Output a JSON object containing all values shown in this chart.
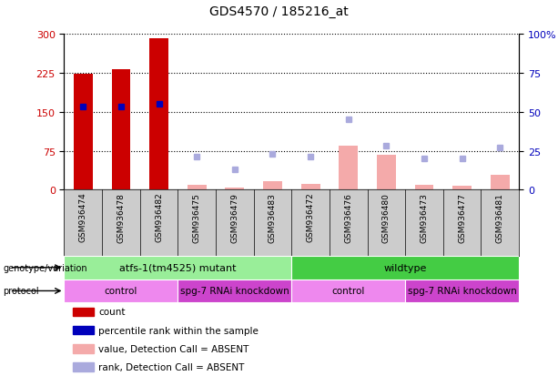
{
  "title": "GDS4570 / 185216_at",
  "samples": [
    "GSM936474",
    "GSM936478",
    "GSM936482",
    "GSM936475",
    "GSM936479",
    "GSM936483",
    "GSM936472",
    "GSM936476",
    "GSM936480",
    "GSM936473",
    "GSM936477",
    "GSM936481"
  ],
  "count_values": [
    222,
    231,
    291,
    null,
    null,
    null,
    null,
    null,
    null,
    null,
    null,
    null
  ],
  "percentile_values": [
    53,
    53,
    55,
    null,
    null,
    null,
    null,
    null,
    null,
    null,
    null,
    null
  ],
  "absent_count_values": [
    null,
    null,
    null,
    10,
    5,
    17,
    12,
    85,
    68,
    10,
    8,
    28
  ],
  "absent_rank_values": [
    null,
    null,
    null,
    21,
    13,
    23,
    21,
    45,
    28,
    20,
    20,
    27
  ],
  "ylim_left": [
    0,
    300
  ],
  "ylim_right": [
    0,
    100
  ],
  "yticks_left": [
    0,
    75,
    150,
    225,
    300
  ],
  "yticks_right": [
    0,
    25,
    50,
    75,
    100
  ],
  "genotype_groups": [
    {
      "label": "atfs-1(tm4525) mutant",
      "start": 0,
      "end": 6,
      "color": "#99EE99"
    },
    {
      "label": "wildtype",
      "start": 6,
      "end": 12,
      "color": "#44CC44"
    }
  ],
  "protocol_groups": [
    {
      "label": "control",
      "start": 0,
      "end": 3,
      "color": "#EE88EE"
    },
    {
      "label": "spg-7 RNAi knockdown",
      "start": 3,
      "end": 6,
      "color": "#CC44CC"
    },
    {
      "label": "control",
      "start": 6,
      "end": 9,
      "color": "#EE88EE"
    },
    {
      "label": "spg-7 RNAi knockdown",
      "start": 9,
      "end": 12,
      "color": "#CC44CC"
    }
  ],
  "bar_width": 0.5,
  "count_color": "#CC0000",
  "percentile_color": "#0000BB",
  "absent_count_color": "#F4AAAA",
  "absent_rank_color": "#AAAADD",
  "grid_color": "#000000",
  "bg_color": "#FFFFFF",
  "plot_bg_color": "#FFFFFF",
  "xlabel_bg_color": "#CCCCCC",
  "tick_label_color_left": "#CC0000",
  "tick_label_color_right": "#0000BB",
  "legend_items": [
    {
      "color": "#CC0000",
      "label": "count"
    },
    {
      "color": "#0000BB",
      "label": "percentile rank within the sample"
    },
    {
      "color": "#F4AAAA",
      "label": "value, Detection Call = ABSENT"
    },
    {
      "color": "#AAAADD",
      "label": "rank, Detection Call = ABSENT"
    }
  ]
}
